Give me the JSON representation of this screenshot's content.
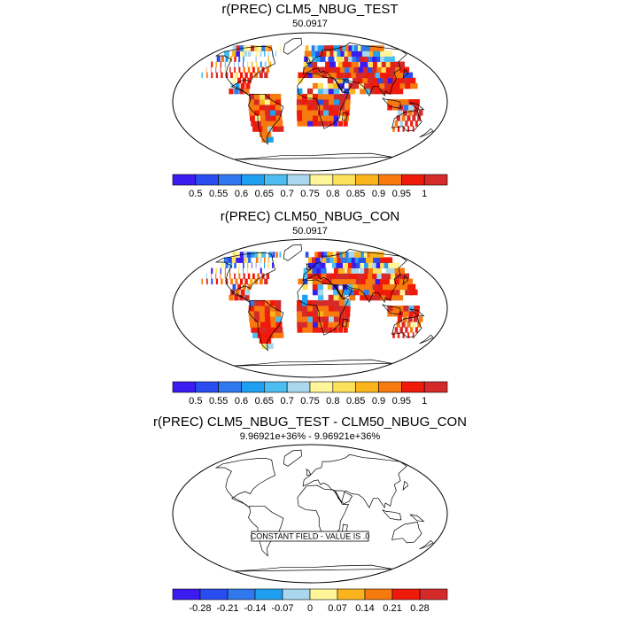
{
  "panels": [
    {
      "title": "r(PREC) CLM5_NBUG_TEST",
      "subtitle": "50.0917",
      "has_field": true,
      "colorbar": {
        "labels": [
          "0.5",
          "0.55",
          "0.6",
          "0.65",
          "0.7",
          "0.75",
          "0.8",
          "0.85",
          "0.9",
          "0.95",
          "1"
        ],
        "colors": [
          "#3b1bf0",
          "#2a4df0",
          "#2f78ee",
          "#1e9ff0",
          "#4cbdf0",
          "#a9d8ee",
          "#fff69a",
          "#fde15a",
          "#fbb41c",
          "#f77a0e",
          "#f01a0a",
          "#d42a2a"
        ]
      }
    },
    {
      "title": "r(PREC) CLM50_NBUG_CON",
      "subtitle": "50.0917",
      "has_field": true,
      "colorbar": {
        "labels": [
          "0.5",
          "0.55",
          "0.6",
          "0.65",
          "0.7",
          "0.75",
          "0.8",
          "0.85",
          "0.9",
          "0.95",
          "1"
        ],
        "colors": [
          "#3b1bf0",
          "#2a4df0",
          "#2f78ee",
          "#1e9ff0",
          "#4cbdf0",
          "#a9d8ee",
          "#fff69a",
          "#fde15a",
          "#fbb41c",
          "#f77a0e",
          "#f01a0a",
          "#d42a2a"
        ]
      }
    },
    {
      "title": "r(PREC) CLM5_NBUG_TEST - CLM50_NBUG_CON",
      "subtitle": "9.96921e+36% - 9.96921e+36%",
      "has_field": false,
      "notice": "CONSTANT FIELD - VALUE IS .0",
      "colorbar": {
        "labels": [
          "-0.28",
          "-0.21",
          "-0.14",
          "-0.07",
          "0",
          "0.07",
          "0.14",
          "0.21",
          "0.28"
        ],
        "colors": [
          "#3b1bf0",
          "#2a4df0",
          "#2f78ee",
          "#1e9ff0",
          "#a9d8ee",
          "#fff69a",
          "#fbb41c",
          "#f77a0e",
          "#f01a0a",
          "#d42a2a"
        ]
      }
    }
  ]
}
